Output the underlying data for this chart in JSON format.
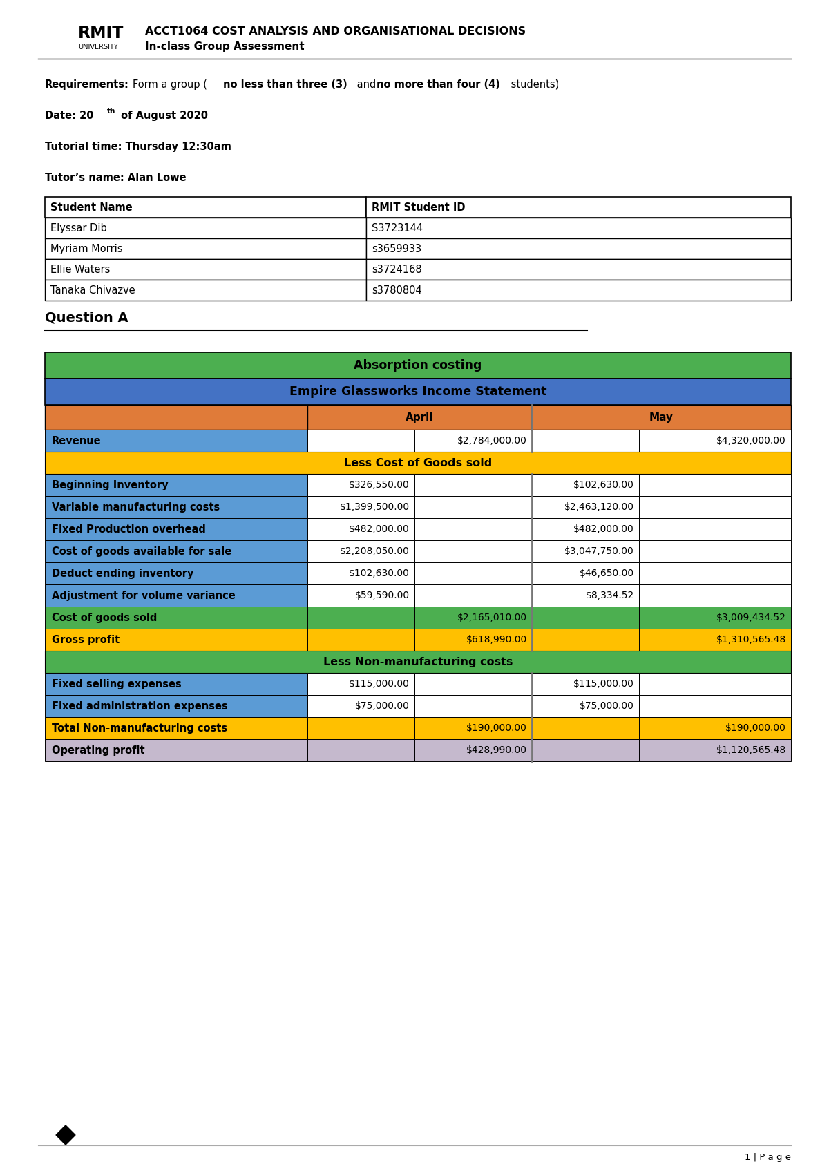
{
  "title_line1": "ACCT1064 COST ANALYSIS AND ORGANISATIONAL DECISIONS",
  "title_line2": "In-class Group Assessment",
  "students": [
    [
      "Elyssar Dib",
      "S3723144"
    ],
    [
      "Myriam Morris",
      "s3659933"
    ],
    [
      "Ellie Waters",
      "s3724168"
    ],
    [
      "Tanaka Chivazve",
      "s3780804"
    ]
  ],
  "rows": [
    {
      "label": "Revenue",
      "april_a": "",
      "april_b": "$2,784,000.00",
      "may_a": "",
      "may_b": "$4,320,000.00",
      "type": "revenue"
    },
    {
      "label": "Less Cost of Goods sold",
      "april_a": "",
      "april_b": "",
      "may_a": "",
      "may_b": "",
      "type": "section_gold"
    },
    {
      "label": "Beginning Inventory",
      "april_a": "$326,550.00",
      "april_b": "",
      "may_a": "$102,630.00",
      "may_b": "",
      "type": "blue"
    },
    {
      "label": "Variable manufacturing costs",
      "april_a": "$1,399,500.00",
      "april_b": "",
      "may_a": "$2,463,120.00",
      "may_b": "",
      "type": "blue"
    },
    {
      "label": "Fixed Production overhead",
      "april_a": "$482,000.00",
      "april_b": "",
      "may_a": "$482,000.00",
      "may_b": "",
      "type": "blue"
    },
    {
      "label": "Cost of goods available for sale",
      "april_a": "$2,208,050.00",
      "april_b": "",
      "may_a": "$3,047,750.00",
      "may_b": "",
      "type": "blue"
    },
    {
      "label": "Deduct ending inventory",
      "april_a": "$102,630.00",
      "april_b": "",
      "may_a": "$46,650.00",
      "may_b": "",
      "type": "blue"
    },
    {
      "label": "Adjustment for volume variance",
      "april_a": "$59,590.00",
      "april_b": "",
      "may_a": "$8,334.52",
      "may_b": "",
      "type": "blue"
    },
    {
      "label": "Cost of goods sold",
      "april_a": "",
      "april_b": "$2,165,010.00",
      "may_a": "",
      "may_b": "$3,009,434.52",
      "type": "green"
    },
    {
      "label": "Gross profit",
      "april_a": "",
      "april_b": "$618,990.00",
      "may_a": "",
      "may_b": "$1,310,565.48",
      "type": "gold"
    },
    {
      "label": "Less Non-manufacturing costs",
      "april_a": "",
      "april_b": "",
      "may_a": "",
      "may_b": "",
      "type": "section_green"
    },
    {
      "label": "Fixed selling expenses",
      "april_a": "$115,000.00",
      "april_b": "",
      "may_a": "$115,000.00",
      "may_b": "",
      "type": "blue"
    },
    {
      "label": "Fixed administration expenses",
      "april_a": "$75,000.00",
      "april_b": "",
      "may_a": "$75,000.00",
      "may_b": "",
      "type": "blue"
    },
    {
      "label": "Total Non-manufacturing costs",
      "april_a": "",
      "april_b": "$190,000.00",
      "may_a": "",
      "may_b": "$190,000.00",
      "type": "gold"
    },
    {
      "label": "Operating profit",
      "april_a": "",
      "april_b": "$428,990.00",
      "may_a": "",
      "may_b": "$1,120,565.48",
      "type": "lavender"
    }
  ],
  "colors": {
    "green_header": "#4CAF50",
    "blue_header": "#4472C4",
    "orange_header": "#E07B39",
    "gold": "#FFC000",
    "blue_row": "#5B9BD5",
    "green_row": "#4CAF50",
    "lavender": "#C5B9CD",
    "white": "#FFFFFF",
    "black": "#000000"
  },
  "footer_text": "1 | P a g e",
  "bg_color": "#FFFFFF"
}
